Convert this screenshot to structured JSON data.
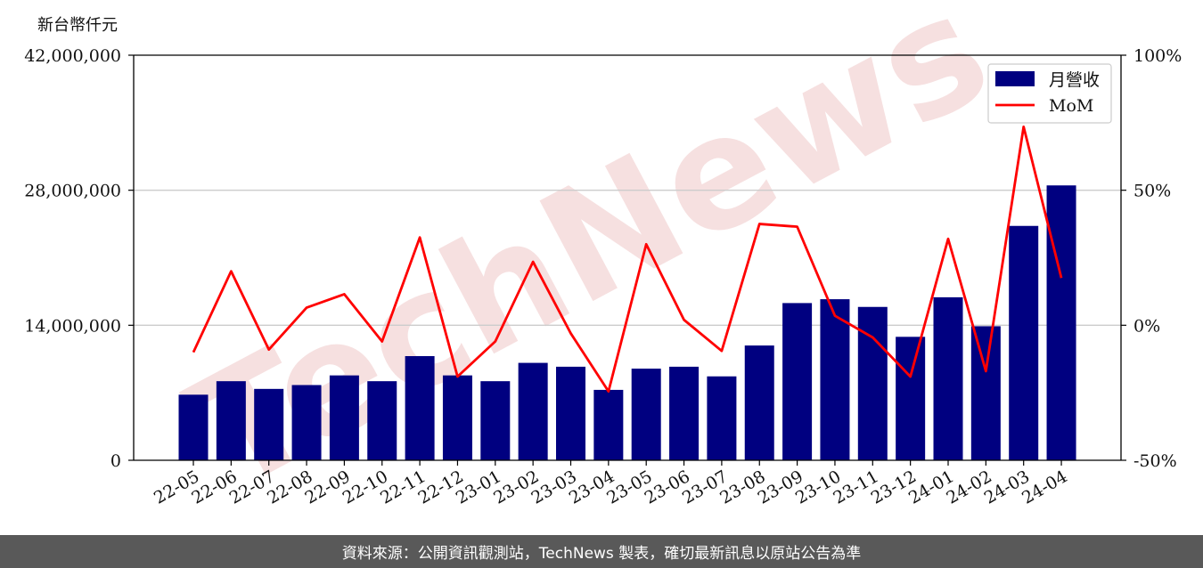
{
  "y_unit_label": "新台幣仟元",
  "footer_text": "資料來源：公開資訊觀測站，TechNews 製表，確切最新訊息以原站公告為準",
  "watermark_text": "TechNews",
  "colors": {
    "bar": "#000080",
    "line": "#ff0000",
    "grid": "#cccccc",
    "footer_bg": "#595959",
    "watermark": "#f3d6d6"
  },
  "chart_data": {
    "type": "bar+line",
    "categories": [
      "22-05",
      "22-06",
      "22-07",
      "22-08",
      "22-09",
      "22-10",
      "22-11",
      "22-12",
      "23-01",
      "23-02",
      "23-03",
      "23-04",
      "23-05",
      "23-06",
      "23-07",
      "23-08",
      "23-09",
      "23-10",
      "23-11",
      "23-12",
      "24-01",
      "24-02",
      "24-03",
      "24-04"
    ],
    "series": [
      {
        "name": "月營收",
        "type": "bar",
        "axis": "left",
        "values": [
          6800000,
          8200000,
          7400000,
          7800000,
          8800000,
          8200000,
          10800000,
          8800000,
          8200000,
          10100000,
          9700000,
          7300000,
          9500000,
          9700000,
          8700000,
          11900000,
          16300000,
          16700000,
          15900000,
          12800000,
          16900000,
          13900000,
          24300000,
          28500000
        ]
      },
      {
        "name": "MoM",
        "type": "line",
        "axis": "right",
        "values": [
          -10,
          20,
          -9,
          6.5,
          11.5,
          -6,
          32.5,
          -19,
          -6,
          23.5,
          -3,
          -24.5,
          30,
          2,
          -9.5,
          37.5,
          36.5,
          3.5,
          -4.5,
          -19,
          32,
          -17,
          73.5,
          17.5
        ]
      }
    ],
    "y_left": {
      "ticks": [
        "0",
        "14,000,000",
        "28,000,000",
        "42,000,000"
      ],
      "ylim": [
        0,
        42000000
      ]
    },
    "y_right": {
      "ticks": [
        "-50%",
        "0%",
        "50%",
        "100%"
      ],
      "ylim": [
        -50,
        100
      ]
    },
    "grid": "horizontal",
    "legend_position": "top-right"
  }
}
